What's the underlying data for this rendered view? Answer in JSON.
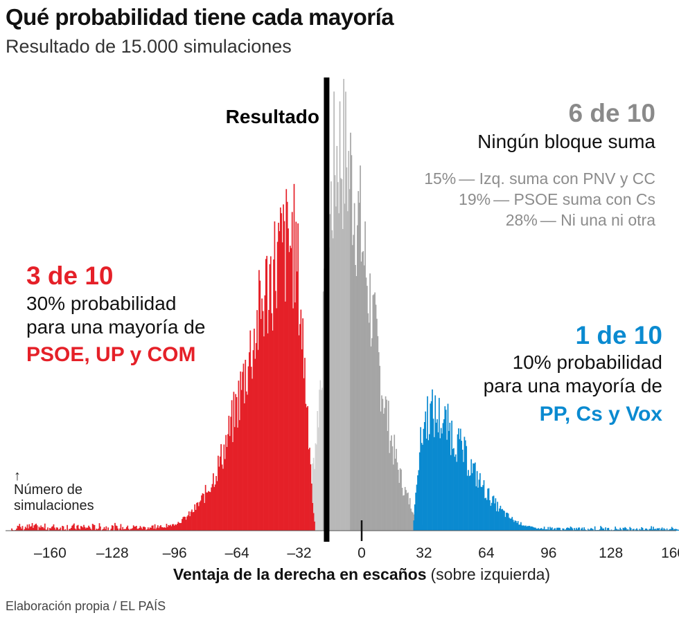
{
  "title": "Qué probabilidad tiene cada mayoría",
  "subtitle": "Resultado de 15.000 simulaciones",
  "source": "Elaboración propia / EL PAÍS",
  "colors": {
    "left": "#e52028",
    "right": "#0a8ad0",
    "none_light": "#d4d4d4",
    "none_mid": "#b8b8b8",
    "none_dark": "#a5a5a5",
    "result_line": "#000000"
  },
  "chart_data": {
    "type": "bar",
    "result_label": "Resultado",
    "result_value": -18,
    "xlim": [
      -180,
      168
    ],
    "x_ticks": [
      -160,
      -128,
      -96,
      -64,
      -32,
      0,
      32,
      64,
      96,
      128,
      160
    ],
    "x_tick_labels": [
      "–160",
      "–128",
      "–96",
      "–64",
      "–32",
      "0",
      "32",
      "64",
      "96",
      "128",
      "160"
    ],
    "xlabel_bold": "Ventaja de la derecha en escaños",
    "xlabel_light": "(sobre izquierda)",
    "y_arrow": "↑",
    "ylabel_line1": "Número de",
    "ylabel_line2": "simulaciones",
    "series": [
      {
        "name": "PSOE, UP y COM",
        "x_range": [
          -180,
          -24
        ],
        "peak_x": -36,
        "peak_value": 430
      },
      {
        "name": "Ningún bloque suma",
        "x_range": [
          -31,
          32
        ],
        "peak_x": -12,
        "peak_value": 570
      },
      {
        "name": "PP, Cs y Vox",
        "x_range": [
          26,
          168
        ],
        "peak_x": 34,
        "peak_value": 175
      }
    ],
    "annotations": {
      "left": {
        "headline": "3 de 10",
        "line1": "30% probabilidad",
        "line2": "para una mayoría de",
        "bloc": "PSOE, UP y COM"
      },
      "right": {
        "headline": "1 de 10",
        "line1": "10% probabilidad",
        "line2": "para una mayoría de",
        "bloc": "PP, Cs y Vox"
      },
      "middle": {
        "headline": "6 de 10",
        "line1": "Ningún bloque suma",
        "breakdown": [
          {
            "pct": "15%",
            "text": "— Izq. suma con PNV y CC"
          },
          {
            "pct": "19%",
            "text": "— PSOE suma con Cs"
          },
          {
            "pct": "28%",
            "text": "— Ni una ni otra"
          }
        ]
      }
    }
  }
}
